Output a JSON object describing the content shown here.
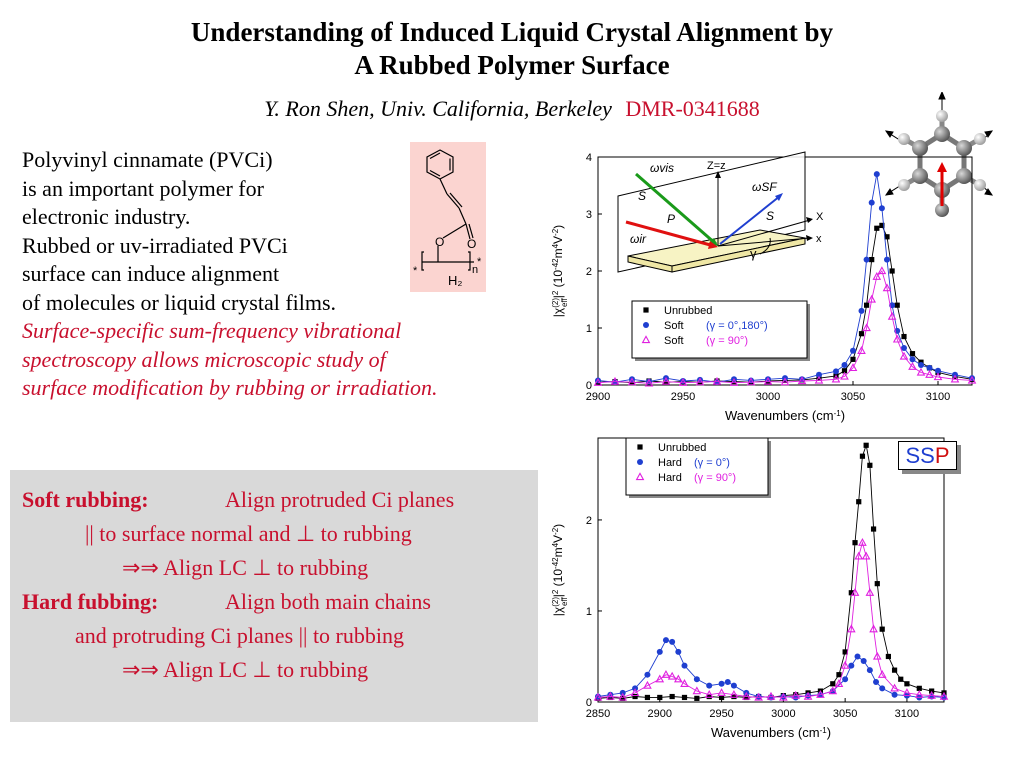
{
  "header": {
    "title_line1": "Understanding of Induced Liquid Crystal Alignment by",
    "title_line2": "A Rubbed Polymer Surface",
    "author": "Y. Ron Shen, Univ. California, Berkeley",
    "grant": "DMR-0341688"
  },
  "intro": {
    "lines": [
      "Polyvinyl cinnamate (PVCi)",
      "is an important polymer for",
      "electronic industry.",
      "Rubbed or uv-irradiated PVCi",
      "surface can induce alignment",
      "of molecules or liquid crystal films."
    ],
    "red_lines": [
      "Surface-specific sum-frequency vibrational",
      "spectroscopy allows microscopic study of",
      "surface modification by rubbing or irradiation."
    ]
  },
  "molecule": {
    "atom_o1": "O",
    "atom_o2": "O",
    "star_left": "*",
    "star_right": "*",
    "n": "n",
    "h2": "H₂"
  },
  "summary": {
    "soft_head": "Soft rubbing:",
    "soft_text": "Align protruded Ci planes",
    "soft_line2": "|| to surface normal and ⊥ to rubbing",
    "soft_line3": "⇒⇒ Align LC ⊥ to rubbing",
    "hard_head": "Hard fubbing:",
    "hard_text": "Align both main chains",
    "hard_line2": "and protruding Ci planes || to rubbing",
    "hard_line3": "⇒⇒ Align LC ⊥ to rubbing"
  },
  "badge": {
    "s1": "S",
    "s2": "S",
    "p": "P"
  },
  "geometry_labels": {
    "omega_vis": "ωvis",
    "omega_sf": "ωSF",
    "omega_ir": "ωir",
    "z": "Z=z",
    "s_left": "S",
    "s_right": "S",
    "p": "P",
    "x_upper": "X",
    "x_lower": "x",
    "gamma": "γ"
  },
  "colors": {
    "red_text": "#c8102e",
    "series_black": "#000000",
    "series_blue": "#1f3fd0",
    "series_magenta": "#e020e0"
  },
  "chart_data": [
    {
      "type": "scatter",
      "xlabel": "Wavenumbers (cm-1)",
      "ylabel": "|χeff(2)|2 (10-42m4V-2)",
      "xlim": [
        2900,
        3120
      ],
      "ylim": [
        0,
        4
      ],
      "xticks": [
        2900,
        2950,
        3000,
        3050,
        3100
      ],
      "yticks": [
        0,
        1,
        2,
        3,
        4
      ],
      "legend_position": "center-right",
      "series": [
        {
          "name": "Unrubbed",
          "legend_label": "Unrubbed",
          "marker": "square",
          "color": "#000000",
          "x": [
            2900,
            2910,
            2920,
            2930,
            2940,
            2950,
            2960,
            2970,
            2980,
            2990,
            3000,
            3010,
            3020,
            3030,
            3040,
            3045,
            3050,
            3055,
            3058,
            3061,
            3064,
            3067,
            3070,
            3073,
            3076,
            3080,
            3085,
            3090,
            3095,
            3100,
            3110,
            3120
          ],
          "y": [
            0.05,
            0.06,
            0.04,
            0.07,
            0.05,
            0.06,
            0.05,
            0.07,
            0.06,
            0.05,
            0.07,
            0.08,
            0.09,
            0.12,
            0.16,
            0.25,
            0.45,
            0.9,
            1.4,
            2.2,
            2.75,
            2.8,
            2.6,
            2.0,
            1.4,
            0.85,
            0.55,
            0.4,
            0.3,
            0.22,
            0.15,
            0.1
          ]
        },
        {
          "name": "Soft (γ = 0°,180°)",
          "legend_label": "Soft",
          "legend_value": "(γ = 0°,180°)",
          "marker": "circle",
          "color": "#1f3fd0",
          "x": [
            2900,
            2910,
            2920,
            2930,
            2940,
            2950,
            2960,
            2970,
            2980,
            2990,
            3000,
            3010,
            3020,
            3030,
            3040,
            3045,
            3050,
            3055,
            3058,
            3061,
            3064,
            3067,
            3070,
            3073,
            3076,
            3080,
            3085,
            3090,
            3095,
            3100,
            3110,
            3120
          ],
          "y": [
            0.08,
            0.05,
            0.1,
            0.06,
            0.12,
            0.07,
            0.09,
            0.05,
            0.1,
            0.08,
            0.1,
            0.12,
            0.1,
            0.18,
            0.24,
            0.35,
            0.6,
            1.3,
            2.2,
            3.2,
            3.7,
            3.1,
            2.2,
            1.4,
            0.95,
            0.65,
            0.45,
            0.35,
            0.3,
            0.25,
            0.18,
            0.12
          ]
        },
        {
          "name": "Soft (γ = 90°)",
          "legend_label": "Soft",
          "legend_value": "(γ = 90°)",
          "marker": "triangle",
          "color": "#e020e0",
          "x": [
            2900,
            2910,
            2920,
            2930,
            2940,
            2950,
            2960,
            2970,
            2980,
            2990,
            3000,
            3010,
            3020,
            3030,
            3040,
            3045,
            3050,
            3055,
            3058,
            3061,
            3064,
            3067,
            3070,
            3073,
            3076,
            3080,
            3085,
            3090,
            3095,
            3100,
            3110,
            3120
          ],
          "y": [
            0.04,
            0.06,
            0.05,
            0.03,
            0.06,
            0.04,
            0.05,
            0.06,
            0.04,
            0.05,
            0.06,
            0.05,
            0.07,
            0.08,
            0.1,
            0.15,
            0.3,
            0.6,
            1.0,
            1.5,
            1.9,
            2.0,
            1.7,
            1.2,
            0.8,
            0.5,
            0.32,
            0.22,
            0.18,
            0.14,
            0.1,
            0.08
          ]
        }
      ]
    },
    {
      "type": "scatter",
      "xlabel": "Wavenumbers (cm-1)",
      "ylabel": "|χeff(2)|2 (10-42m4V-2)",
      "xlim": [
        2850,
        3130
      ],
      "ylim": [
        0,
        2.9
      ],
      "xticks": [
        2850,
        2900,
        2950,
        3000,
        3050,
        3100
      ],
      "yticks": [
        0,
        1,
        2
      ],
      "legend_position": "top-left",
      "series": [
        {
          "name": "Unrubbed",
          "legend_label": "Unrubbed",
          "marker": "square",
          "color": "#000000",
          "x": [
            2850,
            2860,
            2870,
            2880,
            2890,
            2900,
            2910,
            2920,
            2930,
            2940,
            2950,
            2960,
            2970,
            2980,
            2990,
            3000,
            3010,
            3020,
            3030,
            3040,
            3045,
            3050,
            3055,
            3058,
            3061,
            3064,
            3067,
            3070,
            3073,
            3076,
            3080,
            3085,
            3090,
            3095,
            3100,
            3110,
            3120,
            3130
          ],
          "y": [
            0.04,
            0.05,
            0.04,
            0.06,
            0.05,
            0.05,
            0.06,
            0.05,
            0.04,
            0.06,
            0.05,
            0.06,
            0.05,
            0.06,
            0.05,
            0.07,
            0.08,
            0.1,
            0.12,
            0.2,
            0.3,
            0.55,
            1.2,
            1.75,
            2.2,
            2.7,
            2.82,
            2.6,
            1.9,
            1.3,
            0.8,
            0.5,
            0.35,
            0.25,
            0.2,
            0.15,
            0.12,
            0.1
          ]
        },
        {
          "name": "Hard (γ = 0°)",
          "legend_label": "Hard",
          "legend_value": "(γ = 0°)",
          "marker": "circle",
          "color": "#1f3fd0",
          "x": [
            2850,
            2860,
            2870,
            2880,
            2890,
            2900,
            2905,
            2910,
            2915,
            2920,
            2930,
            2940,
            2950,
            2955,
            2960,
            2970,
            2980,
            2990,
            3000,
            3010,
            3020,
            3030,
            3040,
            3050,
            3055,
            3060,
            3065,
            3070,
            3075,
            3080,
            3090,
            3100,
            3110,
            3120,
            3130
          ],
          "y": [
            0.06,
            0.08,
            0.1,
            0.15,
            0.3,
            0.55,
            0.68,
            0.66,
            0.55,
            0.4,
            0.25,
            0.18,
            0.2,
            0.22,
            0.18,
            0.1,
            0.06,
            0.05,
            0.06,
            0.05,
            0.07,
            0.08,
            0.12,
            0.25,
            0.4,
            0.5,
            0.45,
            0.35,
            0.22,
            0.15,
            0.08,
            0.07,
            0.05,
            0.06,
            0.05
          ]
        },
        {
          "name": "Hard (γ = 90°)",
          "legend_label": "Hard",
          "legend_value": "(γ = 90°)",
          "marker": "triangle",
          "color": "#e020e0",
          "x": [
            2850,
            2860,
            2870,
            2880,
            2890,
            2900,
            2905,
            2910,
            2915,
            2920,
            2930,
            2940,
            2950,
            2960,
            2970,
            2980,
            2990,
            3000,
            3010,
            3020,
            3030,
            3040,
            3045,
            3050,
            3055,
            3058,
            3061,
            3064,
            3067,
            3070,
            3073,
            3076,
            3080,
            3090,
            3100,
            3110,
            3120,
            3130
          ],
          "y": [
            0.05,
            0.06,
            0.05,
            0.1,
            0.18,
            0.25,
            0.3,
            0.28,
            0.25,
            0.2,
            0.12,
            0.08,
            0.1,
            0.08,
            0.06,
            0.05,
            0.06,
            0.05,
            0.07,
            0.06,
            0.08,
            0.12,
            0.2,
            0.4,
            0.8,
            1.2,
            1.6,
            1.75,
            1.6,
            1.2,
            0.8,
            0.5,
            0.3,
            0.15,
            0.1,
            0.08,
            0.07,
            0.06
          ]
        }
      ]
    }
  ]
}
